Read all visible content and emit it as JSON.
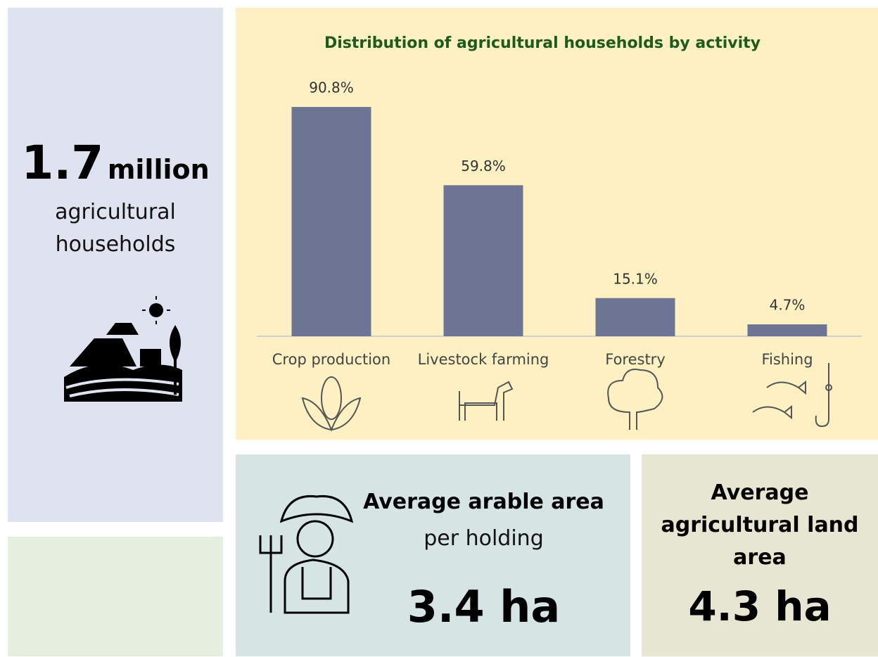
{
  "households": {
    "number": "1.7",
    "unit": "million",
    "label": "agricultural households"
  },
  "chart_data": {
    "type": "bar",
    "title": "Distribution of agricultural households by activity",
    "categories": [
      "Crop production",
      "Livestock farming",
      "Forestry",
      "Fishing"
    ],
    "values": [
      90.8,
      59.8,
      15.1,
      4.7
    ],
    "value_labels": [
      "90.8%",
      "59.8%",
      "15.1%",
      "4.7%"
    ],
    "color": "#6e7494"
  },
  "arable": {
    "title": "Average arable area",
    "subtitle": "per holding",
    "value": "3.4 ha"
  },
  "land": {
    "title": "Average agricultural land area",
    "value": "4.3 ha"
  }
}
